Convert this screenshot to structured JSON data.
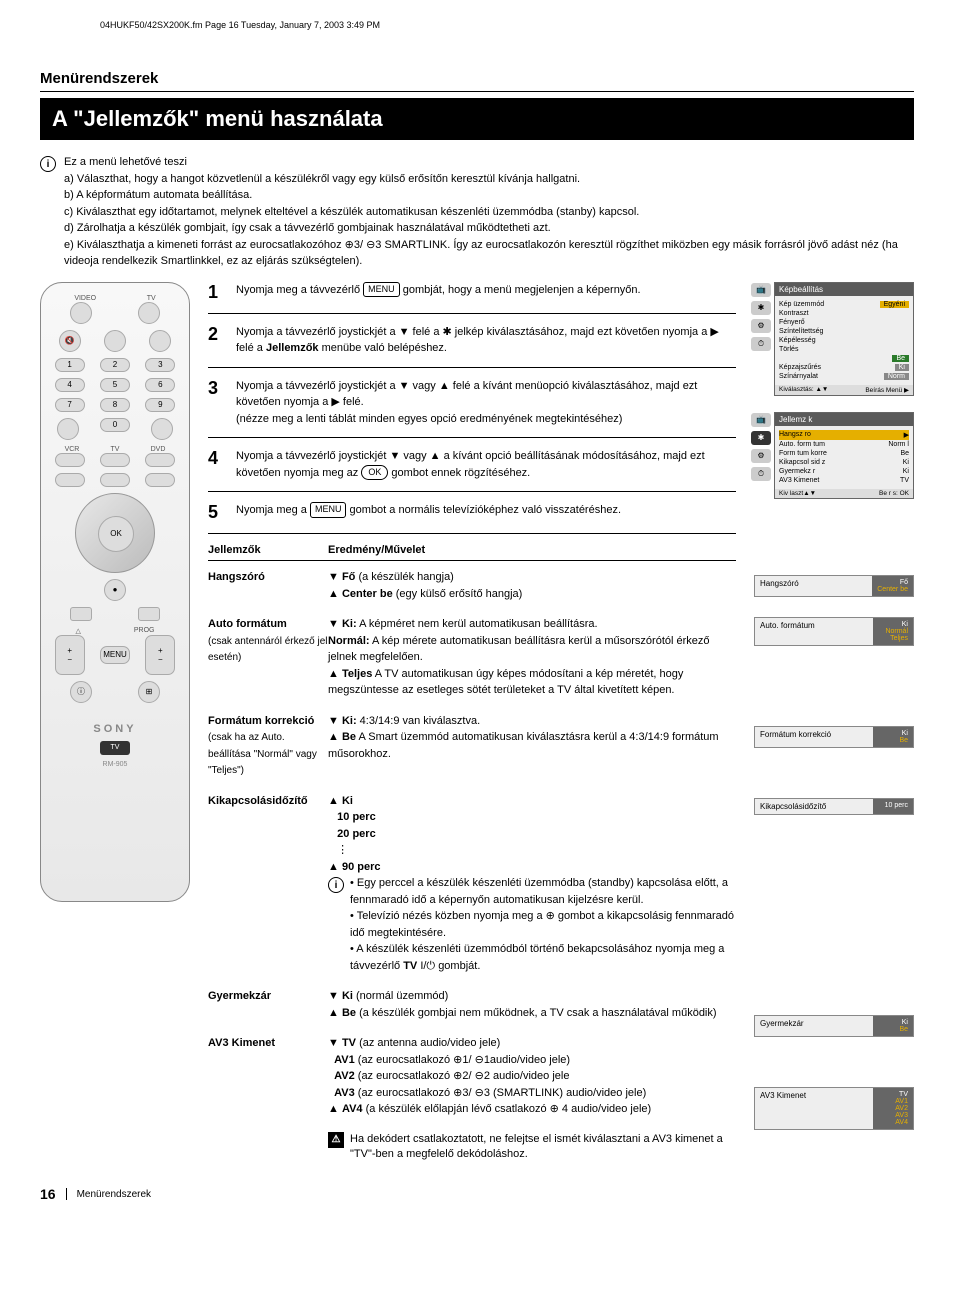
{
  "meta": {
    "header_line": "04HUKF50/42SX200K.fm  Page 16  Tuesday, January 7, 2003  3:49 PM"
  },
  "section_title": "Menürendszerek",
  "banner": "A \"Jellemzők\" menü használata",
  "intro": {
    "lead": "Ez a menü lehetővé teszi",
    "a": "a) Választhat, hogy a hangot közvetlenül a készülékről vagy egy külső erősítőn keresztül kívánja hallgatni.",
    "b": "b) A képformátum automata beállítása.",
    "c": "c) Kiválaszthat egy időtartamot, melynek elteltével a készülék automatikusan készenléti üzemmódba (stanby) kapcsol.",
    "d": "d) Zárolhatja a készülék gombjait, így csak a távvezérlő gombjainak használatával működtetheti azt.",
    "e": "e) Kiválaszthatja a kimeneti forrást az eurocsatlakozóhoz ⊕3/ ⊖3 SMARTLINK. Így az eurocsatlakozón keresztül rögzíthet miközben egy másik forrásról jövő adást néz (ha videoja rendelkezik Smartlinkkel, ez az eljárás szükségtelen)."
  },
  "remote": {
    "labels": {
      "video": "VIDEO",
      "tv": "TV",
      "vcr": "VCR",
      "dvd": "DVD",
      "prog": "PROG",
      "menu": "MENU",
      "ok": "OK",
      "brand": "SONY",
      "tv_badge": "TV",
      "model": "RM-905"
    },
    "numbers": [
      "1",
      "2",
      "3",
      "4",
      "5",
      "6",
      "7",
      "8",
      "9",
      "0"
    ]
  },
  "steps": [
    {
      "n": "1",
      "text_pre": "Nyomja meg a távvezérlő ",
      "btn": "MENU",
      "text_post": " gombját, hogy a menü megjelenjen a képernyőn."
    },
    {
      "n": "2",
      "text": "Nyomja a távvezérlő joystickjét a ▼ felé a ✱ jelkép kiválasztásához, majd ezt követően nyomja a ▶ felé a <b>Jellemzők</b> menübe való belépéshez."
    },
    {
      "n": "3",
      "text": "Nyomja a távvezérlő joystickjét a ▼ vagy ▲ felé a kívánt menüopció kiválasztásához, majd ezt követően nyomja a ▶ felé.<br>(nézze meg a lenti táblát minden egyes opció eredményének megtekintéséhez)"
    },
    {
      "n": "4",
      "text": "Nyomja a távvezérlő joystickjét ▼ vagy ▲ a kívánt opció beállításának módosításához, majd ezt követően nyomja meg az <span class='ok-label'>OK</span> gombot ennek rögzítéséhez."
    },
    {
      "n": "5",
      "text_pre": "Nyomja meg a ",
      "btn": "MENU",
      "text_post": " gombot a normális televízióképhez való visszatéréshez."
    }
  ],
  "osd1": {
    "title": "Képbeállítás",
    "rows": [
      {
        "k": "Kép üzemmód",
        "v": "Egyéni",
        "cls": "osd-badge"
      },
      {
        "k": "Kontraszt",
        "v": ""
      },
      {
        "k": "Fényerő",
        "v": ""
      },
      {
        "k": "Színtelítettség",
        "v": ""
      },
      {
        "k": "Képélesség",
        "v": ""
      },
      {
        "k": "Törlés",
        "v": ""
      },
      {
        "k": "",
        "v": "Be",
        "cls": "osd-badge-green"
      },
      {
        "k": "Képzajszűrés",
        "v": "Ki",
        "cls": "osd-badge-grey"
      },
      {
        "k": "Színárnyalat",
        "v": "Norm",
        "cls": "osd-badge-grey"
      }
    ],
    "footer_l": "Kiválasztás: ▲▼",
    "footer_r": "Beírás Menü ▶"
  },
  "osd2": {
    "title": "Jellemz k",
    "hangszoro": "Hangsz ro",
    "rows": [
      {
        "k": "Auto. form tum",
        "v": "Norm l"
      },
      {
        "k": "Form tum korre",
        "v": "Be"
      },
      {
        "k": "Kikapcsol sid z",
        "v": "Ki"
      },
      {
        "k": "Gyermekz r",
        "v": "Ki"
      },
      {
        "k": "AV3 Kimenet",
        "v": "TV"
      }
    ],
    "footer_l": "Kiv laszt▲▼",
    "footer_r": "Be r s: OK"
  },
  "table": {
    "h1": "Jellemzők",
    "h2": "Eredmény/Művelet",
    "rows": [
      {
        "label": "Hangszóró",
        "sub": "",
        "body": "▼ <b>Fő</b> (a készülék hangja)<br>▲ <b>Center be</b> (egy külső erősítő hangja)"
      },
      {
        "label": "Auto formátum",
        "sub": "(csak antennáról érkező jel esetén)",
        "body": "▼ <b>Ki:</b> A képméret nem kerül automatikusan beállításra.<br><b>Normál:</b> A kép mérete automatikusan beállításra kerül a műsorszórótól érkező jelnek megfelelően.<br>▲ <b>Teljes</b> A TV automatikusan úgy képes módosítani a kép méretét, hogy megszüntesse az esetleges sötét területeket a TV által kivetített képen."
      },
      {
        "label": "Formátum korrekció",
        "sub": "(csak ha az Auto. beállítása \"Normál\" vagy \"Teljes\")",
        "body": "▼ <b>Ki:</b> 4:3/14:9 van kiválasztva.<br>▲ <b>Be</b> A Smart üzemmód automatikusan kiválasztásra kerül a 4:3/14:9 formátum műsorokhoz."
      },
      {
        "label": "Kikapcsolásidőzítő",
        "sub": "",
        "body": "▲ <b>Ki</b><br>&nbsp;&nbsp;&nbsp;<b>10 perc</b><br>&nbsp;&nbsp;&nbsp;<b>20 perc</b><br>&nbsp;&nbsp;&nbsp;⋮<br>▲ <b>90 perc</b><br><span style='display:flex; gap:6px;'><span class='info-icon'>i</span><span>• Egy perccel a készülék készenléti üzemmódba (standby) kapcsolása előtt, a fennmaradó idő a képernyőn automatikusan kijelzésre kerül.<br>• Televízió nézés közben nyomja meg a ⊕ gombot a kikapcsolásig fennmaradó idő megtekintésére.<br>• A készülék készenléti üzemmódból történő bekapcsolásához nyomja meg a távvezérlő <b>TV</b> I/⏻ gombját.</span></span>"
      },
      {
        "label": "Gyermekzár",
        "sub": "",
        "body": "▼ <b>Ki</b> (normál üzemmód)<br>▲ <b>Be</b> (a készülék gombjai nem működnek, a TV csak a használatával működik)"
      },
      {
        "label": "AV3 Kimenet",
        "sub": "",
        "body": "▼ <b>TV</b> (az antenna audio/video jele)<br>&nbsp;&nbsp;<b>AV1</b> (az eurocsatlakozó ⊕1/ ⊖1audio/video jele)<br>&nbsp;&nbsp;<b>AV2</b> (az eurocsatlakozó ⊕2/ ⊖2 audio/video jele<br>&nbsp;&nbsp;<b>AV3</b> (az eurocsatlakozó ⊕3/ ⊖3 (SMARTLINK) audio/video jele)<br>▲ <b>AV4</b> (a készülék előlapján lévő csatlakozó ⊕ 4 audio/video jele)"
      }
    ],
    "warn_note": "Ha dekódert csatlakoztatott, ne felejtse el ismét kiválasztani a AV3 kimenet a \"TV\"-ben a megfelelő dekódoláshoz."
  },
  "mini": {
    "hangszoro": {
      "label": "Hangszóró",
      "val": "Fő",
      "sub": "Center be"
    },
    "auto": {
      "label": "Auto. formátum",
      "val": "Ki",
      "subs": [
        "Normál",
        "Teljes"
      ]
    },
    "form": {
      "label": "Formátum korrekció",
      "val": "Ki",
      "sub": "Be"
    },
    "kikap": {
      "label": "Kikapcsolásidőzítő",
      "val": "10 perc"
    },
    "gyerm": {
      "label": "Gyermekzár",
      "val": "Ki",
      "sub": "Be"
    },
    "av3": {
      "label": "AV3 Kimenet",
      "val": "TV",
      "subs": [
        "AV1",
        "AV2",
        "AV3",
        "AV4"
      ]
    }
  },
  "footer": {
    "page": "16",
    "section": "Menürendszerek"
  },
  "colors": {
    "bg": "#ffffff",
    "text": "#000000",
    "banner_bg": "#000000",
    "banner_fg": "#ffffff",
    "osd_header": "#5a5a5a",
    "osd_body": "#eeeeee",
    "badge_yellow": "#e5af00",
    "badge_green": "#2a7a2a",
    "badge_grey": "#888888"
  }
}
